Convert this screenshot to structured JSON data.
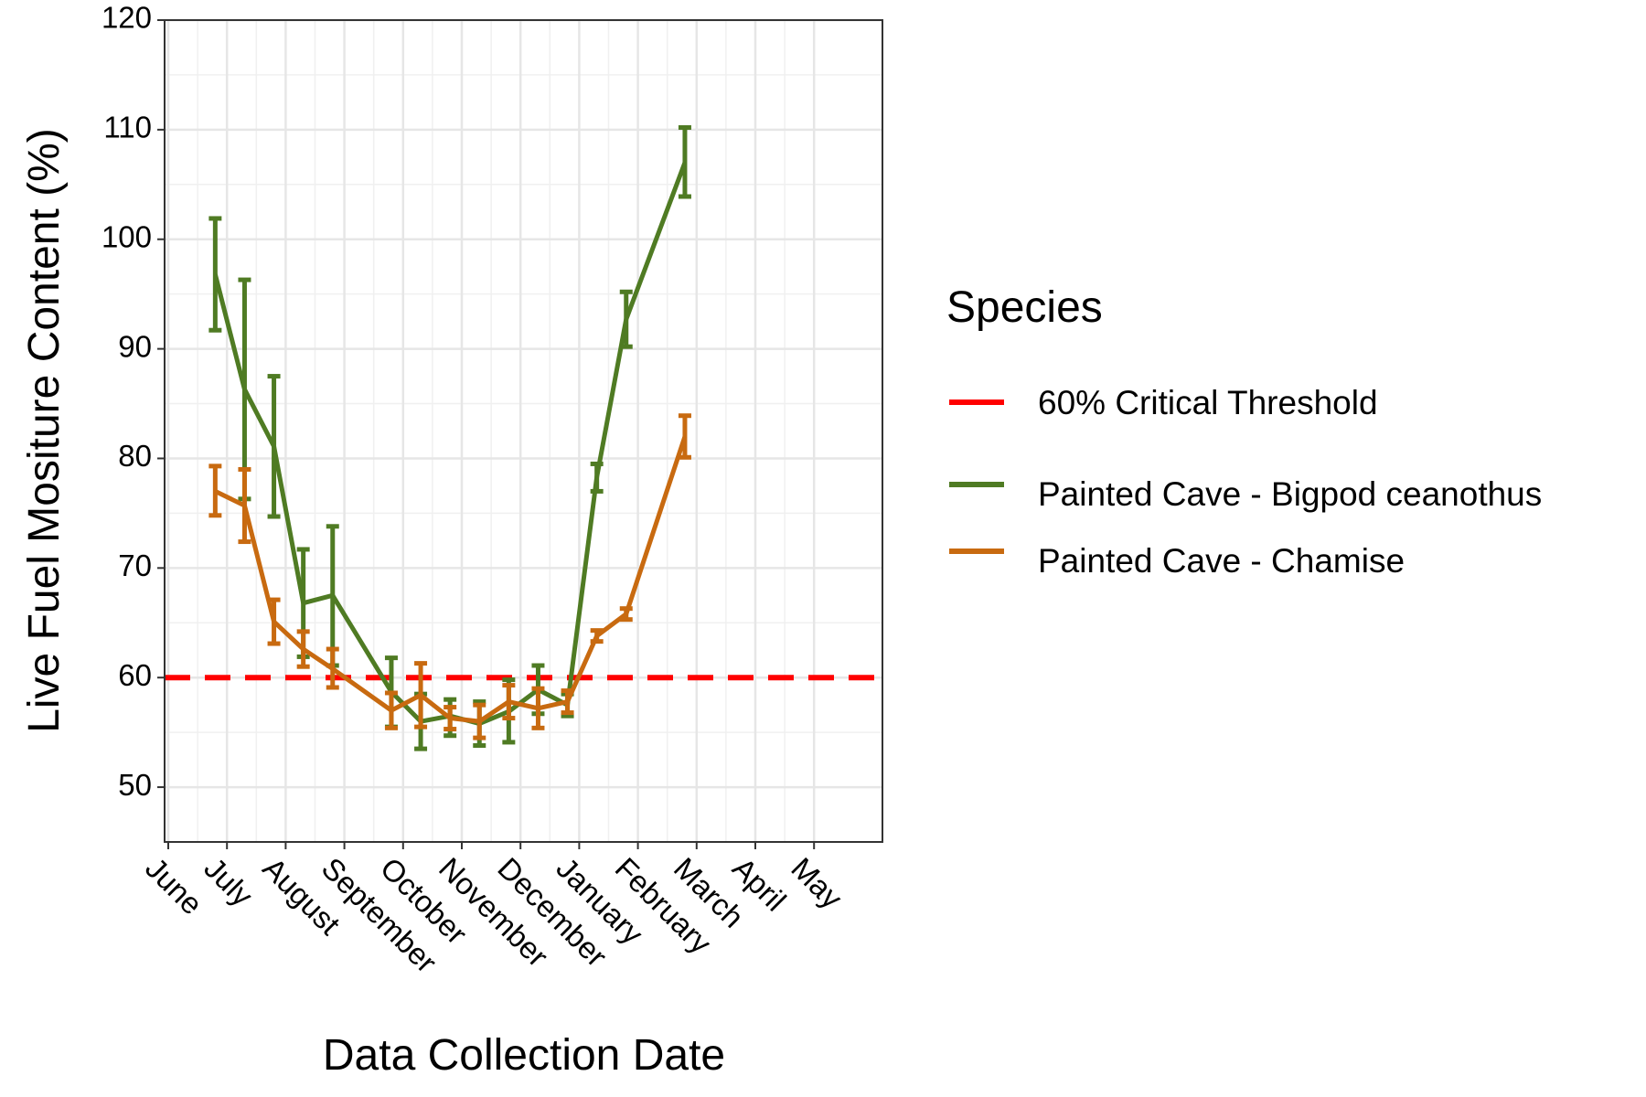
{
  "chart_data": {
    "type": "line",
    "title": "",
    "xlabel": "Data Collection Date",
    "ylabel": "Live Fuel Mositure Content (%)",
    "ylim": [
      45,
      120
    ],
    "y_ticks": [
      50,
      60,
      70,
      80,
      90,
      100,
      110,
      120
    ],
    "x_ticks": [
      "June",
      "July",
      "August",
      "September",
      "October",
      "November",
      "December",
      "January",
      "February",
      "March",
      "April",
      "May"
    ],
    "grid": true,
    "legend": {
      "title": "Species",
      "position": "right",
      "entries": [
        {
          "label": "60% Critical Threshold",
          "color": "#ff0000",
          "style": "dashed"
        },
        {
          "label": "Painted Cave - Bigpod ceanothus",
          "color": "#4f7b23",
          "style": "solid"
        },
        {
          "label": "Painted Cave - Chamise",
          "color": "#c86a10",
          "style": "solid"
        }
      ]
    },
    "threshold": {
      "label": "60% Critical Threshold",
      "value": 60,
      "color": "#ff0000"
    },
    "series": [
      {
        "name": "Painted Cave - Bigpod ceanothus",
        "color": "#4f7b23",
        "points": [
          {
            "x": "June 25",
            "y": 96.8,
            "lo": 91.7,
            "hi": 101.9
          },
          {
            "x": "July 10",
            "y": 86.3,
            "lo": 76.3,
            "hi": 96.3
          },
          {
            "x": "July 25",
            "y": 81.1,
            "lo": 74.7,
            "hi": 87.5
          },
          {
            "x": "August 10",
            "y": 66.8,
            "lo": 61.9,
            "hi": 71.7
          },
          {
            "x": "August 25",
            "y": 67.5,
            "lo": 61.1,
            "hi": 73.8
          },
          {
            "x": "September 25",
            "y": 58.7,
            "lo": 55.5,
            "hi": 61.8
          },
          {
            "x": "October 10",
            "y": 56.0,
            "lo": 53.5,
            "hi": 58.5
          },
          {
            "x": "October 25",
            "y": 56.5,
            "lo": 54.7,
            "hi": 58.0
          },
          {
            "x": "November 10",
            "y": 55.8,
            "lo": 53.8,
            "hi": 57.8
          },
          {
            "x": "November 25",
            "y": 56.9,
            "lo": 54.1,
            "hi": 59.8
          },
          {
            "x": "December 10",
            "y": 58.9,
            "lo": 56.7,
            "hi": 61.1
          },
          {
            "x": "December 25",
            "y": 57.5,
            "lo": 56.5,
            "hi": 58.5
          },
          {
            "x": "January 10",
            "y": 78.3,
            "lo": 77.0,
            "hi": 79.5
          },
          {
            "x": "January 25",
            "y": 92.7,
            "lo": 90.2,
            "hi": 95.2
          },
          {
            "x": "February 25",
            "y": 107.0,
            "lo": 103.9,
            "hi": 110.2
          }
        ]
      },
      {
        "name": "Painted Cave - Chamise",
        "color": "#c86a10",
        "points": [
          {
            "x": "June 25",
            "y": 77.0,
            "lo": 74.8,
            "hi": 79.3
          },
          {
            "x": "July 10",
            "y": 75.7,
            "lo": 72.4,
            "hi": 79.0
          },
          {
            "x": "July 25",
            "y": 65.1,
            "lo": 63.1,
            "hi": 67.1
          },
          {
            "x": "August 10",
            "y": 62.6,
            "lo": 61.0,
            "hi": 64.2
          },
          {
            "x": "August 25",
            "y": 60.8,
            "lo": 59.1,
            "hi": 62.6
          },
          {
            "x": "September 25",
            "y": 57.0,
            "lo": 55.4,
            "hi": 58.6
          },
          {
            "x": "October 10",
            "y": 58.4,
            "lo": 55.5,
            "hi": 61.3
          },
          {
            "x": "October 25",
            "y": 56.3,
            "lo": 55.3,
            "hi": 57.3
          },
          {
            "x": "November 10",
            "y": 56.0,
            "lo": 54.5,
            "hi": 57.5
          },
          {
            "x": "November 25",
            "y": 57.8,
            "lo": 56.3,
            "hi": 59.3
          },
          {
            "x": "December 10",
            "y": 57.2,
            "lo": 55.4,
            "hi": 59.0
          },
          {
            "x": "December 25",
            "y": 57.8,
            "lo": 56.8,
            "hi": 58.8
          },
          {
            "x": "January 10",
            "y": 63.8,
            "lo": 63.3,
            "hi": 64.3
          },
          {
            "x": "January 25",
            "y": 65.8,
            "lo": 65.3,
            "hi": 66.3
          },
          {
            "x": "February 25",
            "y": 82.0,
            "lo": 80.1,
            "hi": 83.9
          }
        ]
      }
    ]
  }
}
